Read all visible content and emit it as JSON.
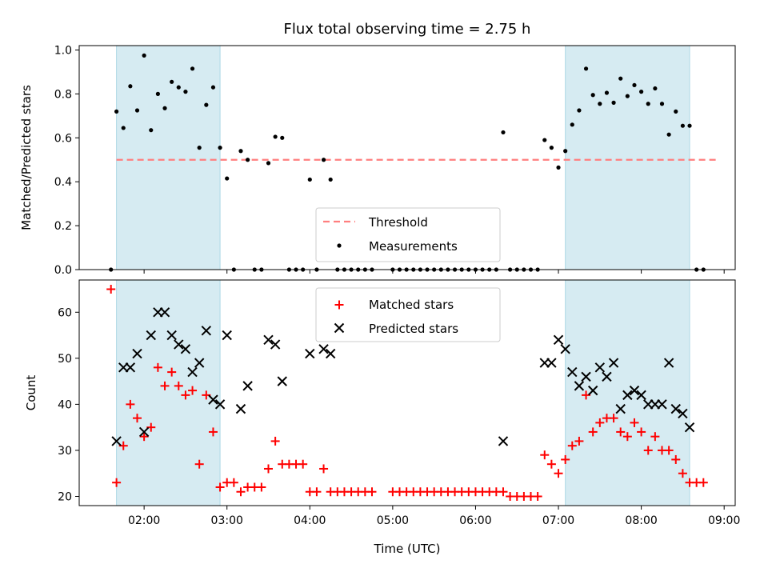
{
  "colors": {
    "band": "#add8e6",
    "threshold": "#ff7f7f",
    "measurement": "#000000",
    "matched": "#ff0000",
    "predicted": "#000000"
  },
  "chart_data": [
    {
      "type": "scatter",
      "title": "Flux total observing time = 2.75 h",
      "xlabel": "",
      "ylabel": "Matched/Predicted stars",
      "xlim": [
        "01:13",
        "09:08"
      ],
      "ylim": [
        0,
        1.02
      ],
      "yticks": [
        0.0,
        0.2,
        0.4,
        0.6,
        0.8,
        1.0
      ],
      "ytick_labels": [
        "0.0",
        "0.2",
        "0.4",
        "0.6",
        "0.8",
        "1.0"
      ],
      "xticks": [
        "02:00",
        "03:00",
        "04:00",
        "05:00",
        "06:00",
        "07:00",
        "08:00",
        "09:00"
      ],
      "shaded_intervals": [
        [
          "01:40",
          "02:55"
        ],
        [
          "07:05",
          "08:35"
        ]
      ],
      "legend": {
        "placement": "lower-center",
        "entries": [
          "Threshold",
          "Measurements"
        ]
      },
      "threshold": {
        "name": "Threshold",
        "value": 0.5,
        "x_range": [
          "01:40",
          "08:55"
        ]
      },
      "series": [
        {
          "name": "Measurements",
          "x": [
            "01:36",
            "01:40",
            "01:45",
            "01:50",
            "01:55",
            "02:00",
            "02:05",
            "02:10",
            "02:15",
            "02:20",
            "02:25",
            "02:30",
            "02:35",
            "02:40",
            "02:45",
            "02:50",
            "02:55",
            "03:00",
            "03:05",
            "03:10",
            "03:15",
            "03:20",
            "03:25",
            "03:30",
            "03:35",
            "03:40",
            "03:45",
            "03:50",
            "03:55",
            "04:00",
            "04:05",
            "04:10",
            "04:15",
            "04:20",
            "04:25",
            "04:30",
            "04:35",
            "04:40",
            "04:45",
            "05:00",
            "05:05",
            "05:10",
            "05:15",
            "05:20",
            "05:25",
            "05:30",
            "05:35",
            "05:40",
            "05:45",
            "05:50",
            "05:55",
            "06:00",
            "06:05",
            "06:10",
            "06:15",
            "06:20",
            "06:25",
            "06:30",
            "06:35",
            "06:40",
            "06:45",
            "06:50",
            "06:55",
            "07:00",
            "07:05",
            "07:10",
            "07:15",
            "07:20",
            "07:25",
            "07:30",
            "07:35",
            "07:40",
            "07:45",
            "07:50",
            "07:55",
            "08:00",
            "08:05",
            "08:10",
            "08:15",
            "08:20",
            "08:25",
            "08:30",
            "08:35",
            "08:40",
            "08:45"
          ],
          "y": [
            0.0,
            0.72,
            0.645,
            0.835,
            0.725,
            0.975,
            0.635,
            0.8,
            0.735,
            0.855,
            0.83,
            0.81,
            0.915,
            0.555,
            0.75,
            0.83,
            0.555,
            0.415,
            0.0,
            0.54,
            0.5,
            0.0,
            0.0,
            0.485,
            0.605,
            0.6,
            0.0,
            0.0,
            0.0,
            0.41,
            0.0,
            0.5,
            0.41,
            0.0,
            0.0,
            0.0,
            0.0,
            0.0,
            0.0,
            0.0,
            0.0,
            0.0,
            0.0,
            0.0,
            0.0,
            0.0,
            0.0,
            0.0,
            0.0,
            0.0,
            0.0,
            0.0,
            0.0,
            0.0,
            0.0,
            0.625,
            0.0,
            0.0,
            0.0,
            0.0,
            0.0,
            0.59,
            0.555,
            0.465,
            0.54,
            0.66,
            0.725,
            0.915,
            0.795,
            0.755,
            0.805,
            0.76,
            0.87,
            0.79,
            0.84,
            0.81,
            0.755,
            0.825,
            0.755,
            0.615,
            0.72,
            0.655,
            0.655,
            0.0,
            0.0
          ]
        }
      ]
    },
    {
      "type": "scatter",
      "title": "",
      "xlabel": "Time (UTC)",
      "ylabel": "Count",
      "xlim": [
        "01:13",
        "09:08"
      ],
      "ylim": [
        18,
        67
      ],
      "yticks": [
        20,
        30,
        40,
        50,
        60
      ],
      "ytick_labels": [
        "20",
        "30",
        "40",
        "50",
        "60"
      ],
      "xticks": [
        "02:00",
        "03:00",
        "04:00",
        "05:00",
        "06:00",
        "07:00",
        "08:00",
        "09:00"
      ],
      "xtick_labels": [
        "02:00",
        "03:00",
        "04:00",
        "05:00",
        "06:00",
        "07:00",
        "08:00",
        "09:00"
      ],
      "shaded_intervals": [
        [
          "01:40",
          "02:55"
        ],
        [
          "07:05",
          "08:35"
        ]
      ],
      "legend": {
        "placement": "upper-center",
        "entries": [
          "Matched stars",
          "Predicted stars"
        ]
      },
      "series": [
        {
          "name": "Matched stars",
          "x": [
            "01:36",
            "01:40",
            "01:45",
            "01:50",
            "01:55",
            "02:00",
            "02:05",
            "02:10",
            "02:15",
            "02:20",
            "02:25",
            "02:30",
            "02:35",
            "02:40",
            "02:45",
            "02:50",
            "02:55",
            "03:00",
            "03:05",
            "03:10",
            "03:15",
            "03:20",
            "03:25",
            "03:30",
            "03:35",
            "03:40",
            "03:45",
            "03:50",
            "03:55",
            "04:00",
            "04:05",
            "04:10",
            "04:15",
            "04:20",
            "04:25",
            "04:30",
            "04:35",
            "04:40",
            "04:45",
            "05:00",
            "05:05",
            "05:10",
            "05:15",
            "05:20",
            "05:25",
            "05:30",
            "05:35",
            "05:40",
            "05:45",
            "05:50",
            "05:55",
            "06:00",
            "06:05",
            "06:10",
            "06:15",
            "06:20",
            "06:25",
            "06:30",
            "06:35",
            "06:40",
            "06:45",
            "06:50",
            "06:55",
            "07:00",
            "07:05",
            "07:10",
            "07:15",
            "07:20",
            "07:25",
            "07:30",
            "07:35",
            "07:40",
            "07:45",
            "07:50",
            "07:55",
            "08:00",
            "08:05",
            "08:10",
            "08:15",
            "08:20",
            "08:25",
            "08:30",
            "08:35",
            "08:40",
            "08:45"
          ],
          "y": [
            65,
            23,
            31,
            40,
            37,
            33,
            35,
            48,
            44,
            47,
            44,
            42,
            43,
            27,
            42,
            34,
            22,
            23,
            23,
            21,
            22,
            22,
            22,
            26,
            32,
            27,
            27,
            27,
            27,
            21,
            21,
            26,
            21,
            21,
            21,
            21,
            21,
            21,
            21,
            21,
            21,
            21,
            21,
            21,
            21,
            21,
            21,
            21,
            21,
            21,
            21,
            21,
            21,
            21,
            21,
            21,
            20,
            20,
            20,
            20,
            20,
            29,
            27,
            25,
            28,
            31,
            32,
            42,
            34,
            36,
            37,
            37,
            34,
            33,
            36,
            34,
            30,
            33,
            30,
            30,
            28,
            25,
            23,
            23,
            23
          ]
        },
        {
          "name": "Predicted stars",
          "x": [
            "01:40",
            "01:45",
            "01:50",
            "01:55",
            "02:00",
            "02:05",
            "02:10",
            "02:15",
            "02:20",
            "02:25",
            "02:30",
            "02:35",
            "02:40",
            "02:45",
            "02:50",
            "02:55",
            "03:00",
            "03:10",
            "03:15",
            "03:30",
            "03:35",
            "03:40",
            "04:00",
            "04:10",
            "04:15",
            "06:20",
            "06:50",
            "06:55",
            "07:00",
            "07:05",
            "07:10",
            "07:15",
            "07:20",
            "07:25",
            "07:30",
            "07:35",
            "07:40",
            "07:45",
            "07:50",
            "07:55",
            "08:00",
            "08:05",
            "08:10",
            "08:15",
            "08:20",
            "08:25",
            "08:30",
            "08:35"
          ],
          "y": [
            32,
            48,
            48,
            51,
            34,
            55,
            60,
            60,
            55,
            53,
            52,
            47,
            49,
            56,
            41,
            40,
            55,
            39,
            44,
            54,
            53,
            45,
            51,
            52,
            51,
            32,
            49,
            49,
            54,
            52,
            47,
            44,
            46,
            43,
            48,
            46,
            49,
            39,
            42,
            43,
            42,
            40,
            40,
            40,
            49,
            39,
            38,
            35
          ]
        }
      ]
    }
  ]
}
